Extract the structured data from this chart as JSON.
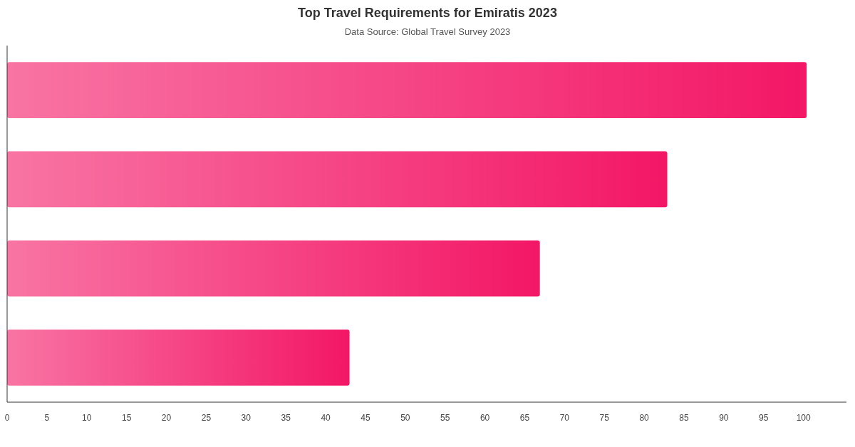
{
  "chart_data": {
    "type": "bar",
    "orientation": "horizontal",
    "title": "Top Travel Requirements for Emiratis 2023",
    "subtitle": "Data Source: Global Travel Survey 2023",
    "categories": [
      null,
      null,
      null,
      null
    ],
    "values": [
      100.4,
      82.9,
      66.9,
      43.0
    ],
    "color": "#f31766",
    "xlim": [
      0,
      105.4
    ],
    "xticks": [
      0,
      5,
      10,
      15,
      20,
      25,
      30,
      35,
      40,
      45,
      50,
      55,
      60,
      65,
      70,
      75,
      80,
      85,
      90,
      95,
      100
    ],
    "grid": false
  }
}
